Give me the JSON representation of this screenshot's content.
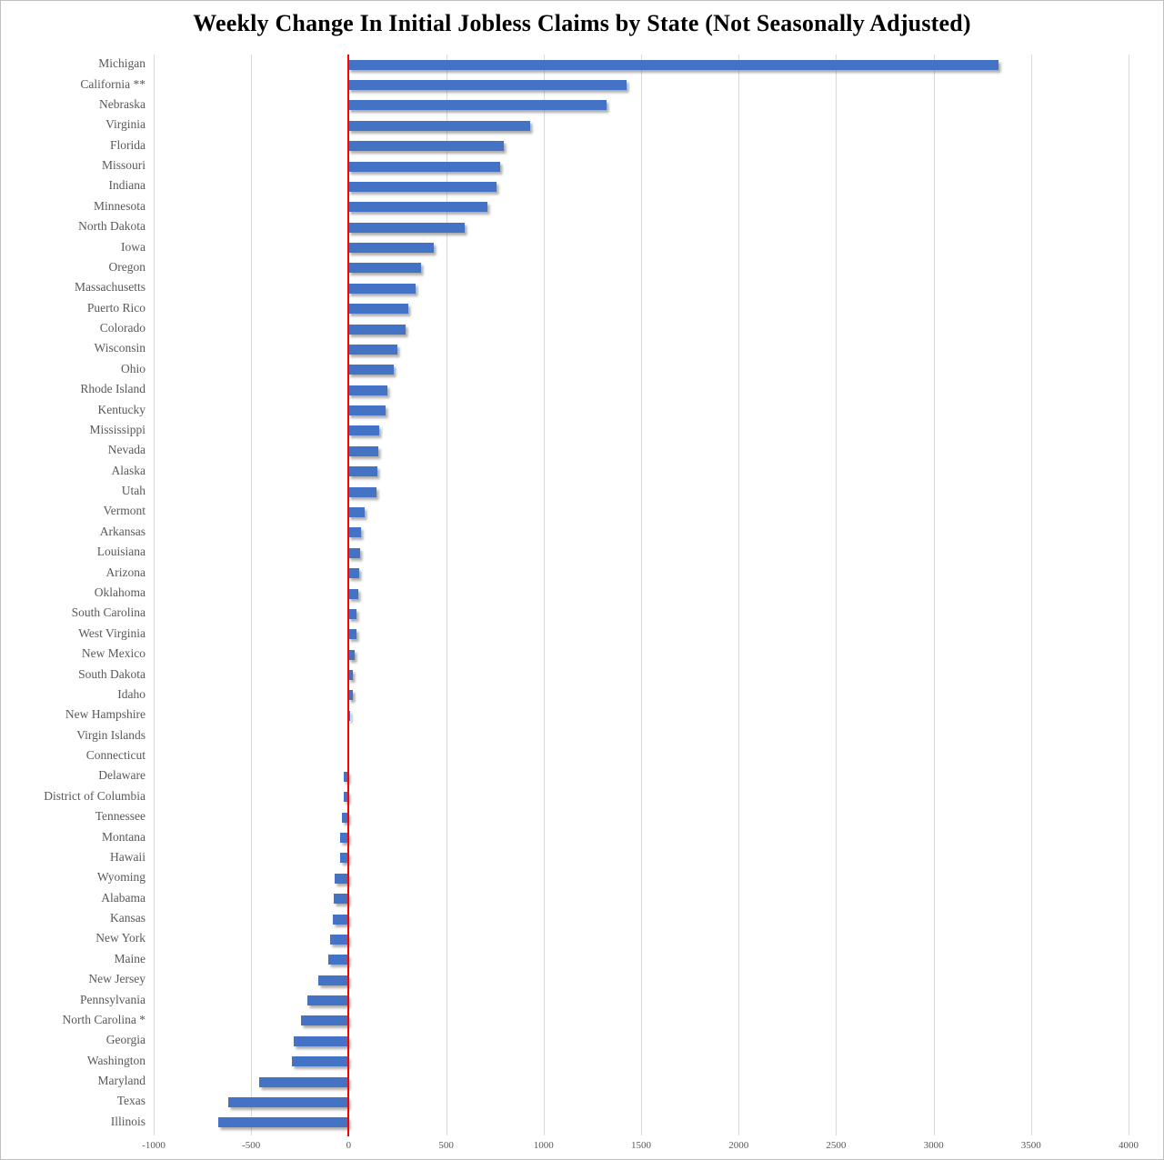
{
  "chart_data": {
    "type": "bar",
    "orientation": "horizontal",
    "title": "Weekly Change In Initial Jobless Claims by State (Not Seasonally Adjusted)",
    "categories": [
      "Michigan",
      "California **",
      "Nebraska",
      "Virginia",
      "Florida",
      "Missouri",
      "Indiana",
      "Minnesota",
      "North Dakota",
      "Iowa",
      "Oregon",
      "Massachusetts",
      "Puerto Rico",
      "Colorado",
      "Wisconsin",
      "Ohio",
      "Rhode Island",
      "Kentucky",
      "Mississippi",
      "Nevada",
      "Alaska",
      "Utah",
      "Vermont",
      "Arkansas",
      "Louisiana",
      "Arizona",
      "Oklahoma",
      "South Carolina",
      "West Virginia",
      "New Mexico",
      "South Dakota",
      "Idaho",
      "New Hampshire",
      "Virgin Islands",
      "Connecticut",
      "Delaware",
      "District of Columbia",
      "Tennessee",
      "Montana",
      "Hawaii",
      "Wyoming",
      "Alabama",
      "Kansas",
      "New York",
      "Maine",
      "New Jersey",
      "Pennsylvania",
      "North Carolina *",
      "Georgia",
      "Washington",
      "Maryland",
      "Texas",
      "Illinois"
    ],
    "values": [
      3334,
      1426,
      1321,
      931,
      797,
      778,
      758,
      712,
      594,
      438,
      369,
      343,
      304,
      293,
      249,
      232,
      201,
      191,
      157,
      150,
      146,
      143,
      82,
      62,
      60,
      52,
      48,
      41,
      39,
      29,
      22,
      20,
      8,
      2,
      0,
      -25,
      -26,
      -36,
      -42,
      -43,
      -73,
      -76,
      -82,
      -97,
      -103,
      -158,
      -210,
      -245,
      -284,
      -291,
      -460,
      -619,
      -671
    ],
    "xlabel": "",
    "ylabel": "",
    "xlim": [
      -1000,
      4000
    ],
    "xtick_labels": [
      "-1000",
      "-500",
      "0",
      "500",
      "1000",
      "1500",
      "2000",
      "2500",
      "3000",
      "3500",
      "4000"
    ],
    "xtick_values": [
      -1000,
      -500,
      0,
      500,
      1000,
      1500,
      2000,
      2500,
      3000,
      3500,
      4000
    ],
    "grid": "vertical",
    "legend": "none",
    "bar_color": "#4472C4",
    "zero_line_color": "#FF0000",
    "gridline_color": "#D9D9D9",
    "label_color": "#595959",
    "title_color": "#000000"
  }
}
